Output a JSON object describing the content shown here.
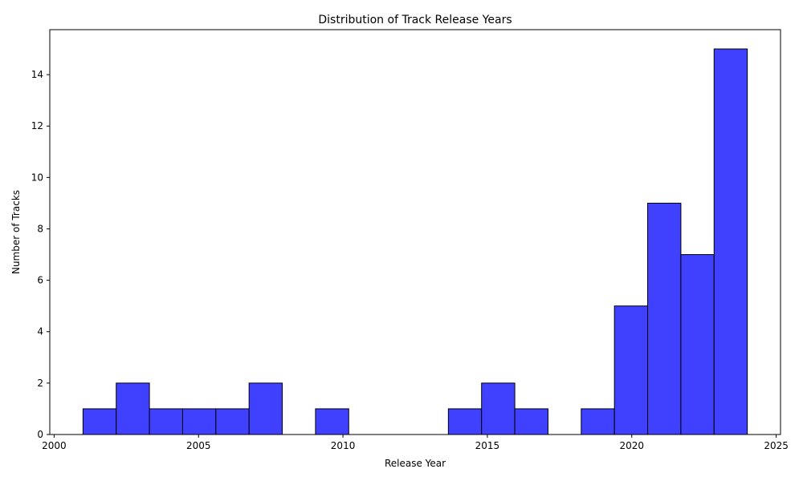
{
  "chart_data": {
    "type": "bar",
    "title": "Distribution of Track Release Years",
    "xlabel": "Release Year",
    "ylabel": "Number of Tracks",
    "bin_edges": [
      2001.0,
      2002.15,
      2003.3,
      2004.45,
      2005.6,
      2006.75,
      2007.9,
      2009.05,
      2010.2,
      2011.35,
      2012.5,
      2013.65,
      2014.8,
      2015.95,
      2017.1,
      2018.25,
      2019.4,
      2020.55,
      2021.7,
      2022.85,
      2024.0
    ],
    "values": [
      1,
      2,
      1,
      1,
      1,
      2,
      0,
      1,
      0,
      0,
      0,
      1,
      2,
      1,
      0,
      1,
      5,
      9,
      7,
      15
    ],
    "xlim": [
      1999.85,
      2025.15
    ],
    "ylim": [
      0,
      15.75
    ],
    "xticks": [
      2000,
      2005,
      2010,
      2015,
      2020,
      2025
    ],
    "yticks": [
      0,
      2,
      4,
      6,
      8,
      10,
      12,
      14
    ],
    "bar_color": "#4040ff",
    "edge_color": "#000000",
    "grid": false,
    "legend": "none"
  }
}
